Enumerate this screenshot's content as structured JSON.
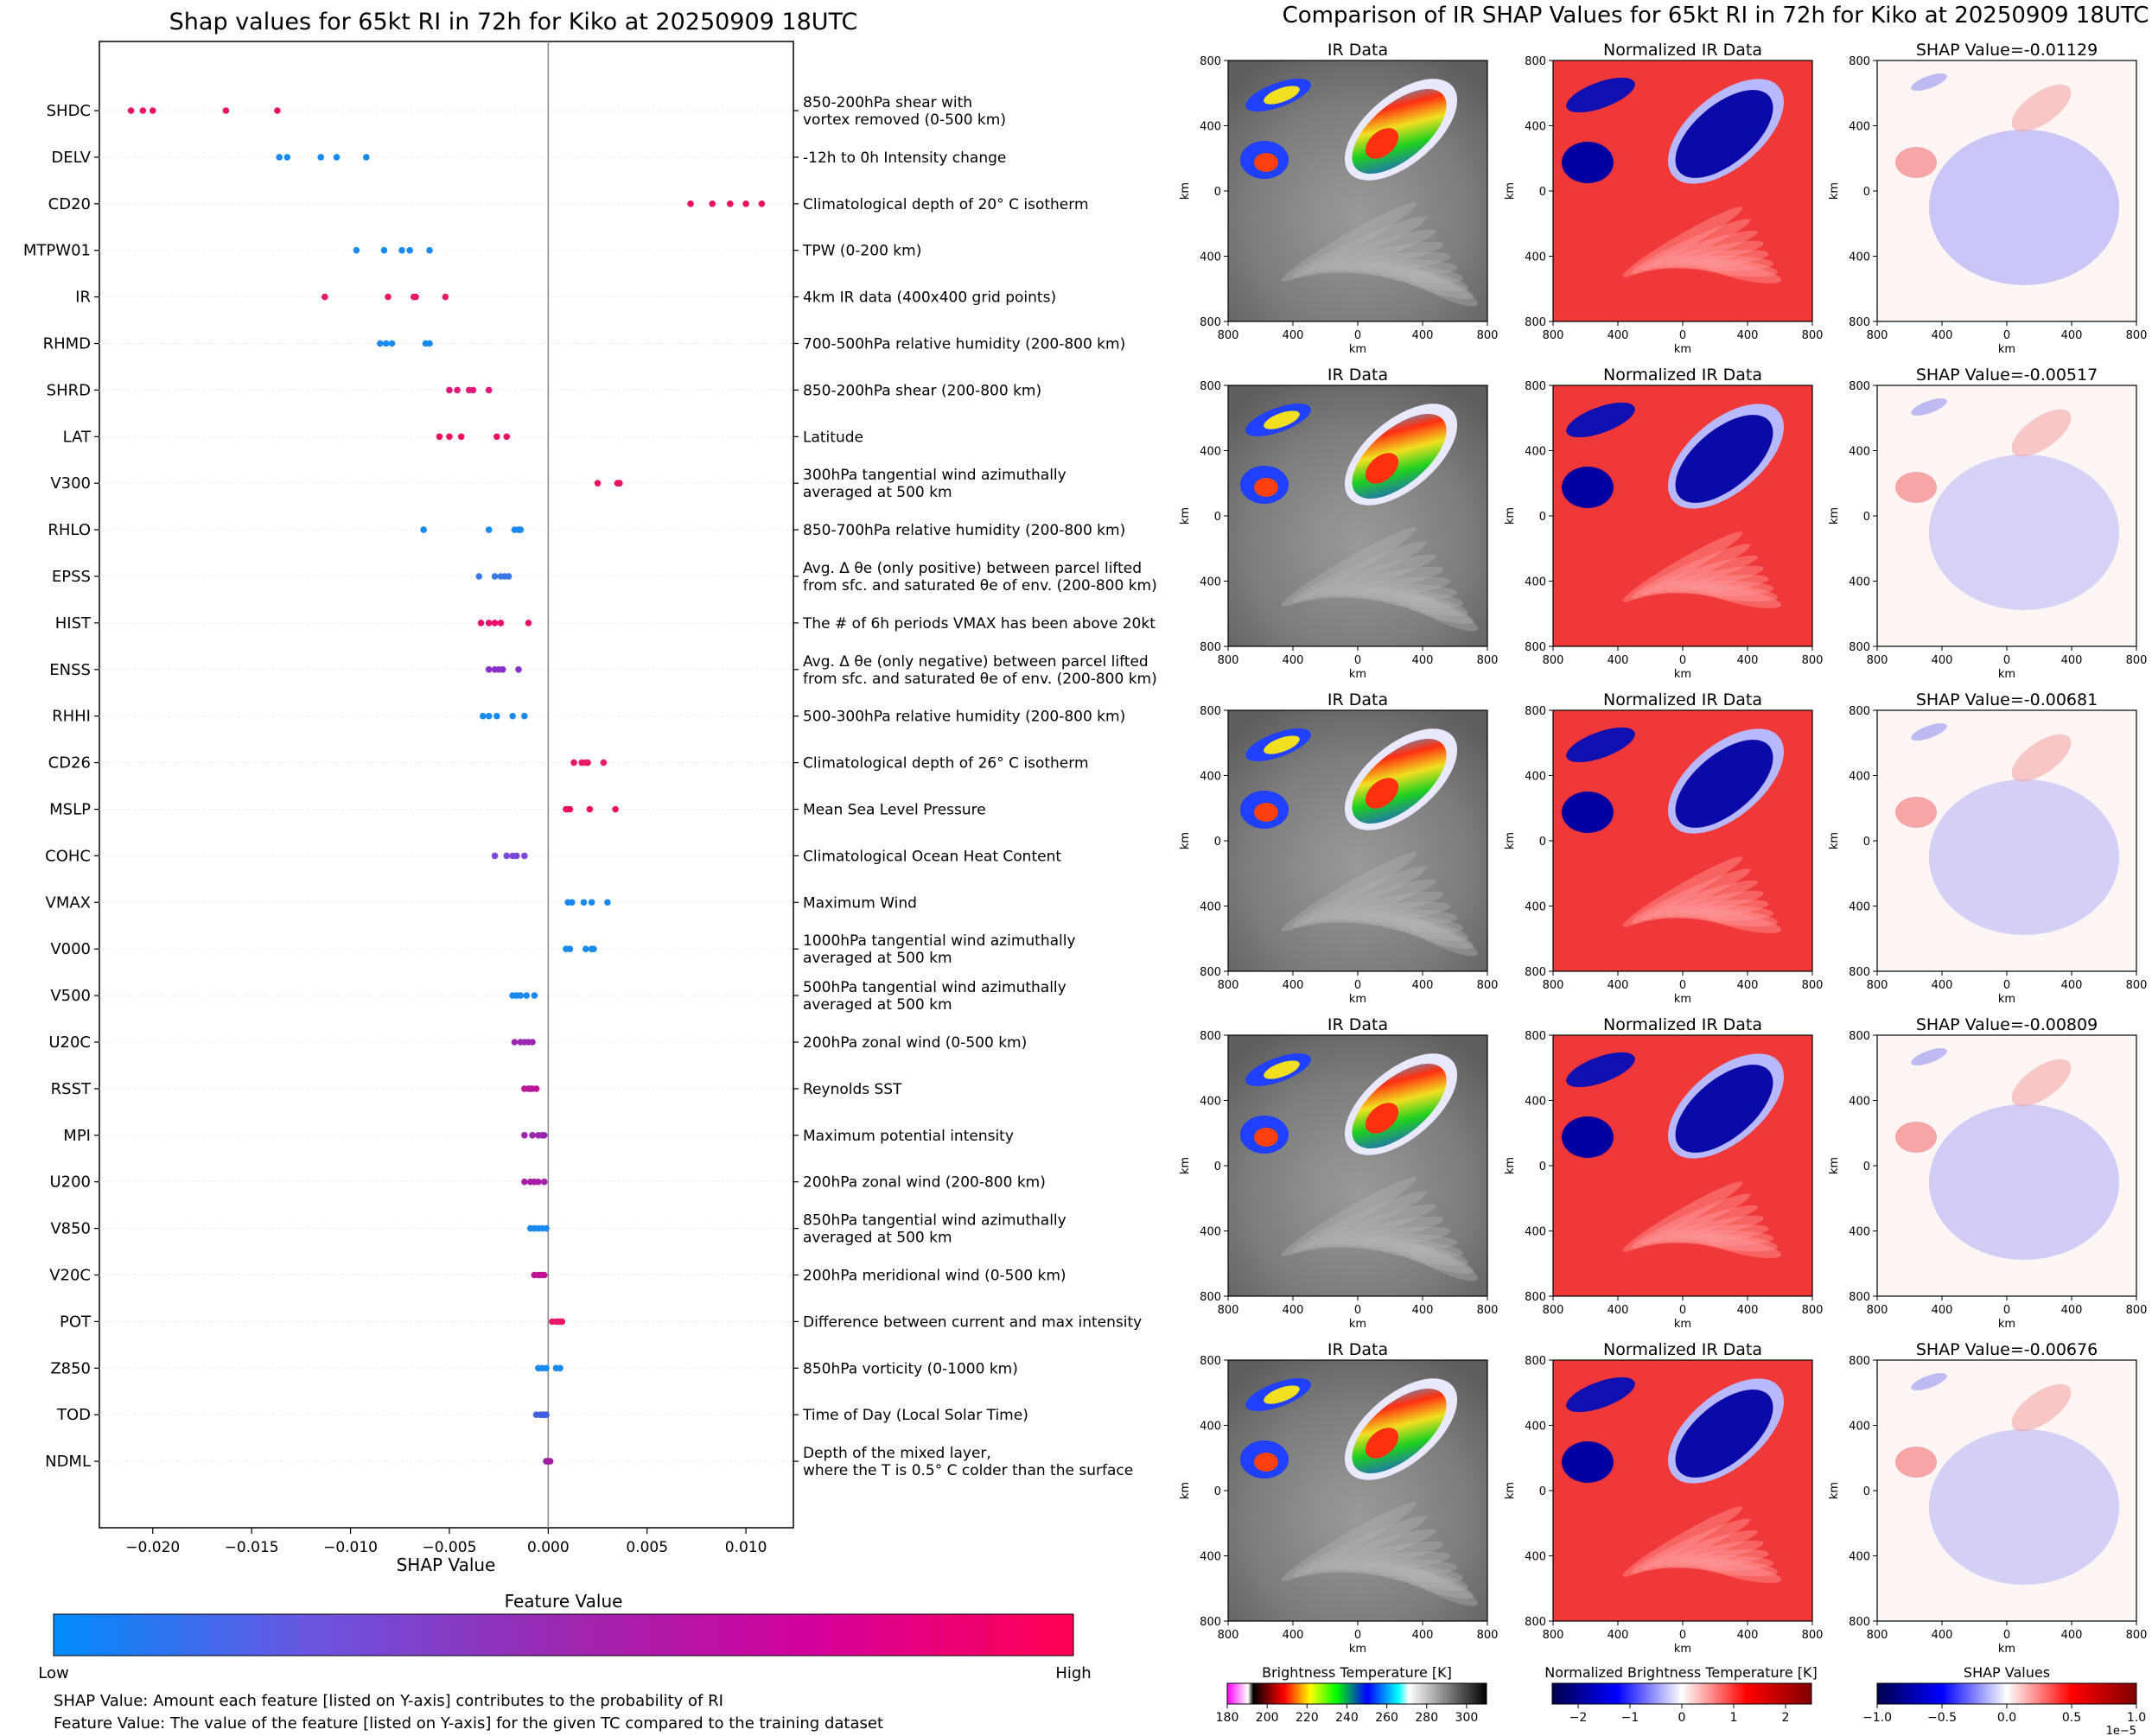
{
  "left_chart": {
    "title": "Shap values for 65kt RI in 72h for Kiko at 20250909 18UTC",
    "xlabel": "SHAP Value",
    "xticks": [
      -0.02,
      -0.015,
      -0.01,
      -0.005,
      0.0,
      0.005,
      0.01
    ],
    "xtick_labels": [
      "−0.020",
      "−0.015",
      "−0.010",
      "−0.005",
      "0.000",
      "0.005",
      "0.010"
    ],
    "xlim": [
      -0.0227,
      0.0124
    ],
    "colorbar_title": "Feature Value",
    "colorbar_low": "Low",
    "colorbar_high": "High",
    "colorbar_colors": [
      "#008bfb",
      "#6a55e0",
      "#9b27b0",
      "#d6009b",
      "#ff0052"
    ],
    "note1": "SHAP Value: Amount each feature [listed on Y-axis] contributes to the probability of RI",
    "note2": "Feature Value: The value of the feature [listed on Y-axis] for the given TC compared to the training dataset"
  },
  "chart_data": [
    {
      "type": "scatter",
      "subtype": "shap-beeswarm",
      "features": [
        {
          "name": "SHDC",
          "desc": [
            "850-200hPa shear with",
            "vortex removed (0-500 km)"
          ],
          "shap": [
            -0.0211,
            -0.0205,
            -0.02,
            -0.0163,
            -0.0137
          ],
          "color": "#f01060"
        },
        {
          "name": "DELV",
          "desc": [
            "-12h to 0h Intensity change"
          ],
          "shap": [
            -0.0136,
            -0.0132,
            -0.0115,
            -0.0107,
            -0.0092
          ],
          "color": "#1a8af0"
        },
        {
          "name": "CD20",
          "desc": [
            "Climatological depth of 20° C isotherm"
          ],
          "shap": [
            0.0072,
            0.0083,
            0.0092,
            0.01,
            0.0108
          ],
          "color": "#f01060"
        },
        {
          "name": "MTPW01",
          "desc": [
            "TPW (0-200 km)"
          ],
          "shap": [
            -0.0097,
            -0.0083,
            -0.0074,
            -0.007,
            -0.006
          ],
          "color": "#1a8af0"
        },
        {
          "name": "IR",
          "desc": [
            "4km IR data (400x400 grid points)"
          ],
          "shap": [
            -0.0113,
            -0.0081,
            -0.0068,
            -0.0067,
            -0.0052
          ],
          "color": "#e81868"
        },
        {
          "name": "RHMD",
          "desc": [
            "700-500hPa relative humidity (200-800 km)"
          ],
          "shap": [
            -0.0085,
            -0.0082,
            -0.0079,
            -0.0062,
            -0.006
          ],
          "color": "#1a8af0"
        },
        {
          "name": "SHRD",
          "desc": [
            "850-200hPa shear (200-800 km)"
          ],
          "shap": [
            -0.005,
            -0.0046,
            -0.004,
            -0.0038,
            -0.003
          ],
          "color": "#e0187a"
        },
        {
          "name": "LAT",
          "desc": [
            "Latitude"
          ],
          "shap": [
            -0.0055,
            -0.005,
            -0.0044,
            -0.0026,
            -0.0021
          ],
          "color": "#f01060"
        },
        {
          "name": "V300",
          "desc": [
            "300hPa tangential wind azimuthally",
            "averaged at 500 km"
          ],
          "shap": [
            0.0025,
            0.0035,
            0.0036,
            0.0036,
            0.0036
          ],
          "color": "#f01060"
        },
        {
          "name": "RHLO",
          "desc": [
            "850-700hPa relative humidity (200-800 km)"
          ],
          "shap": [
            -0.0063,
            -0.003,
            -0.0017,
            -0.0015,
            -0.0014
          ],
          "color": "#1a8af0"
        },
        {
          "name": "EPSS",
          "desc": [
            "Avg. Δ θe (only positive) between parcel lifted",
            "from sfc. and saturated θe of env. (200-800 km)"
          ],
          "shap": [
            -0.0035,
            -0.0027,
            -0.0024,
            -0.0022,
            -0.002
          ],
          "color": "#3a78e8"
        },
        {
          "name": "HIST",
          "desc": [
            "The # of 6h periods VMAX has been above 20kt"
          ],
          "shap": [
            -0.0034,
            -0.003,
            -0.0027,
            -0.0024,
            -0.001
          ],
          "color": "#e8106a"
        },
        {
          "name": "ENSS",
          "desc": [
            "Avg. Δ θe (only negative) between parcel lifted",
            "from sfc. and saturated θe of env. (200-800 km)"
          ],
          "shap": [
            -0.003,
            -0.0027,
            -0.0025,
            -0.0023,
            -0.0015
          ],
          "color": "#8a30c8"
        },
        {
          "name": "RHHI",
          "desc": [
            "500-300hPa relative humidity (200-800 km)"
          ],
          "shap": [
            -0.0033,
            -0.003,
            -0.0026,
            -0.0018,
            -0.0012
          ],
          "color": "#1a8af0"
        },
        {
          "name": "CD26",
          "desc": [
            "Climatological depth of 26° C isotherm"
          ],
          "shap": [
            0.0013,
            0.0017,
            0.0019,
            0.002,
            0.0028
          ],
          "color": "#e81868"
        },
        {
          "name": "MSLP",
          "desc": [
            "Mean Sea Level Pressure"
          ],
          "shap": [
            0.0009,
            0.001,
            0.0011,
            0.0021,
            0.0034
          ],
          "color": "#f01060"
        },
        {
          "name": "COHC",
          "desc": [
            "Climatological Ocean Heat Content"
          ],
          "shap": [
            -0.0027,
            -0.0021,
            -0.0018,
            -0.0016,
            -0.0012
          ],
          "color": "#7a48d8"
        },
        {
          "name": "VMAX",
          "desc": [
            "Maximum Wind"
          ],
          "shap": [
            0.001,
            0.0012,
            0.0018,
            0.0022,
            0.003
          ],
          "color": "#1a8af0"
        },
        {
          "name": "V000",
          "desc": [
            "1000hPa tangential wind azimuthally",
            "averaged at 500 km"
          ],
          "shap": [
            0.0009,
            0.0011,
            0.0019,
            0.0022,
            0.0023
          ],
          "color": "#1a8af0"
        },
        {
          "name": "V500",
          "desc": [
            "500hPa tangential wind azimuthally",
            "averaged at 500 km"
          ],
          "shap": [
            -0.0018,
            -0.0016,
            -0.0014,
            -0.0011,
            -0.0007
          ],
          "color": "#1a8af0"
        },
        {
          "name": "U20C",
          "desc": [
            "200hPa zonal wind (0-500 km)"
          ],
          "shap": [
            -0.0017,
            -0.0014,
            -0.0012,
            -0.001,
            -0.0008
          ],
          "color": "#9b27b0"
        },
        {
          "name": "RSST",
          "desc": [
            "Reynolds SST"
          ],
          "shap": [
            -0.0012,
            -0.001,
            -0.0009,
            -0.0008,
            -0.0006
          ],
          "color": "#b81898"
        },
        {
          "name": "MPI",
          "desc": [
            "Maximum potential intensity"
          ],
          "shap": [
            -0.0012,
            -0.0008,
            -0.0005,
            -0.0003,
            -0.0002
          ],
          "color": "#9b27b0"
        },
        {
          "name": "U200",
          "desc": [
            "200hPa zonal wind (200-800 km)"
          ],
          "shap": [
            -0.0012,
            -0.0009,
            -0.0007,
            -0.0005,
            -0.0002
          ],
          "color": "#a820a8"
        },
        {
          "name": "V850",
          "desc": [
            "850hPa tangential wind azimuthally",
            "averaged at 500 km"
          ],
          "shap": [
            -0.0009,
            -0.0007,
            -0.0005,
            -0.0003,
            -0.0001
          ],
          "color": "#1a8af0"
        },
        {
          "name": "V20C",
          "desc": [
            "200hPa meridional wind (0-500 km)"
          ],
          "shap": [
            -0.0007,
            -0.0005,
            -0.0004,
            -0.0003,
            -0.0002
          ],
          "color": "#c01095"
        },
        {
          "name": "POT",
          "desc": [
            "Difference between current and max intensity"
          ],
          "shap": [
            0.0002,
            0.0004,
            0.0005,
            0.0006,
            0.0007
          ],
          "color": "#e81868"
        },
        {
          "name": "Z850",
          "desc": [
            "850hPa vorticity (0-1000 km)"
          ],
          "shap": [
            -0.0005,
            -0.0003,
            -0.0001,
            0.0004,
            0.0006
          ],
          "color": "#1a8af0"
        },
        {
          "name": "TOD",
          "desc": [
            "Time of Day (Local Solar Time)"
          ],
          "shap": [
            -0.0006,
            -0.0004,
            -0.0003,
            -0.0002,
            -0.0001
          ],
          "color": "#4060e0"
        },
        {
          "name": "NDML",
          "desc": [
            "Depth of the mixed layer,",
            "where the T is 0.5° C colder than the surface"
          ],
          "shap": [
            -0.0001,
            0.0,
            0.0,
            0.0,
            0.0001
          ],
          "color": "#a020a0"
        }
      ]
    },
    {
      "type": "heatmap",
      "title": "Comparison of IR SHAP Values for 65kt RI in 72h for Kiko at 20250909 18UTC",
      "column_titles": [
        "IR Data",
        "Normalized IR Data"
      ],
      "shap_titles": [
        "SHAP Value=-0.01129",
        "SHAP Value=-0.00517",
        "SHAP Value=-0.00681",
        "SHAP Value=-0.00809",
        "SHAP Value=-0.00676"
      ],
      "shap_values": [
        -0.01129,
        -0.00517,
        -0.00681,
        -0.00809,
        -0.00676
      ],
      "axis_label": "km",
      "tick_labels": [
        "800",
        "400",
        "0",
        "400",
        "800"
      ],
      "colorbars": [
        {
          "title": "Brightness Temperature [K]",
          "ticks": [
            "180",
            "200",
            "220",
            "240",
            "260",
            "280",
            "300"
          ],
          "range": [
            180,
            310
          ]
        },
        {
          "title": "Normalized Brightness Temperature [K]",
          "ticks": [
            "−2",
            "−1",
            "0",
            "1",
            "2"
          ],
          "range": [
            -2.5,
            2.5
          ]
        },
        {
          "title": "SHAP Values",
          "ticks": [
            "−1.0",
            "−0.5",
            "0.0",
            "0.5",
            "1.0"
          ],
          "range": [
            -1.0,
            1.0
          ],
          "exponent": "1e−5"
        }
      ]
    }
  ]
}
